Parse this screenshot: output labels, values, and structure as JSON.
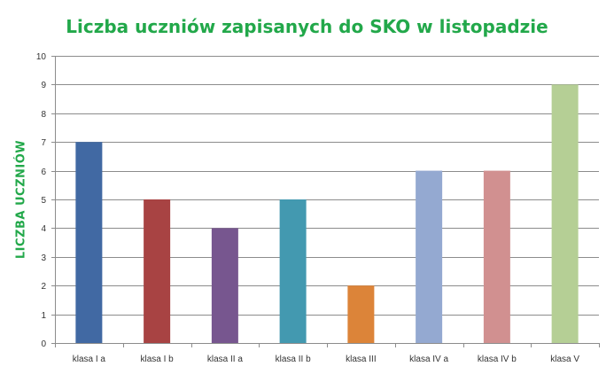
{
  "chart_data": {
    "type": "bar",
    "title": "Liczba uczniów zapisanych do SKO  w listopadzie",
    "xlabel": "",
    "ylabel": "LICZBA UCZNIÓW",
    "categories": [
      "klasa I a",
      "klasa I b",
      "klasa II a",
      "klasa II b",
      "klasa III",
      "klasa IV a",
      "klasa IV b",
      "klasa V"
    ],
    "values": [
      7,
      5,
      4,
      5,
      2,
      6,
      6,
      9
    ],
    "colors": [
      "#4169a3",
      "#a84343",
      "#77568f",
      "#4399b0",
      "#dc8439",
      "#94a9d1",
      "#d19090",
      "#b5cf95"
    ],
    "ylim": [
      0,
      10
    ],
    "yticks": [
      "0",
      "1",
      "2",
      "3",
      "4",
      "5",
      "6",
      "7",
      "8",
      "9",
      "10"
    ],
    "grid": true,
    "legend": "none"
  }
}
